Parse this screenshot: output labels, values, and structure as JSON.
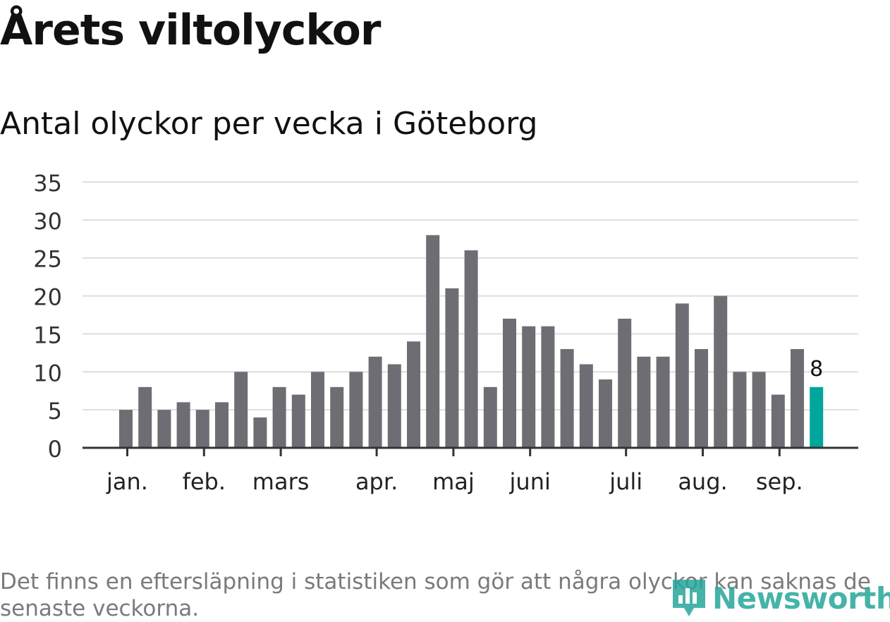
{
  "title": "Årets viltolyckor",
  "subtitle": "Antal olyckor per vecka i Göteborg",
  "footnote": "Det finns en eftersläpning i statistiken som gör att några olyckor kan saknas de senaste veckorna.",
  "logo": {
    "text": "Newsworthy",
    "icon": "bar-chart-pin-icon"
  },
  "colors": {
    "bar": "#6e6d74",
    "highlight": "#00a69c",
    "grid": "#dedede",
    "axis": "#333333",
    "logo": "#26a69a"
  },
  "chart_data": {
    "type": "bar",
    "title": "Antal olyckor per vecka i Göteborg",
    "xlabel": "",
    "ylabel": "",
    "ylim": [
      0,
      35
    ],
    "yticks": [
      0,
      5,
      10,
      15,
      20,
      25,
      30,
      35
    ],
    "grid": true,
    "values": [
      5,
      8,
      5,
      6,
      5,
      6,
      10,
      4,
      8,
      7,
      10,
      8,
      10,
      12,
      11,
      14,
      28,
      21,
      26,
      8,
      17,
      16,
      16,
      13,
      11,
      9,
      17,
      12,
      12,
      19,
      13,
      20,
      10,
      10,
      7,
      13,
      8
    ],
    "month_labels": [
      {
        "label": "jan.",
        "at_bar": 0.5
      },
      {
        "label": "feb.",
        "at_bar": 4.5
      },
      {
        "label": "mars",
        "at_bar": 8.5
      },
      {
        "label": "apr.",
        "at_bar": 13.5
      },
      {
        "label": "maj",
        "at_bar": 17.5
      },
      {
        "label": "juni",
        "at_bar": 21.5
      },
      {
        "label": "juli",
        "at_bar": 26.5
      },
      {
        "label": "aug.",
        "at_bar": 30.5
      },
      {
        "label": "sep.",
        "at_bar": 34.5
      }
    ],
    "highlight_index": 36,
    "highlight_label": "8"
  }
}
